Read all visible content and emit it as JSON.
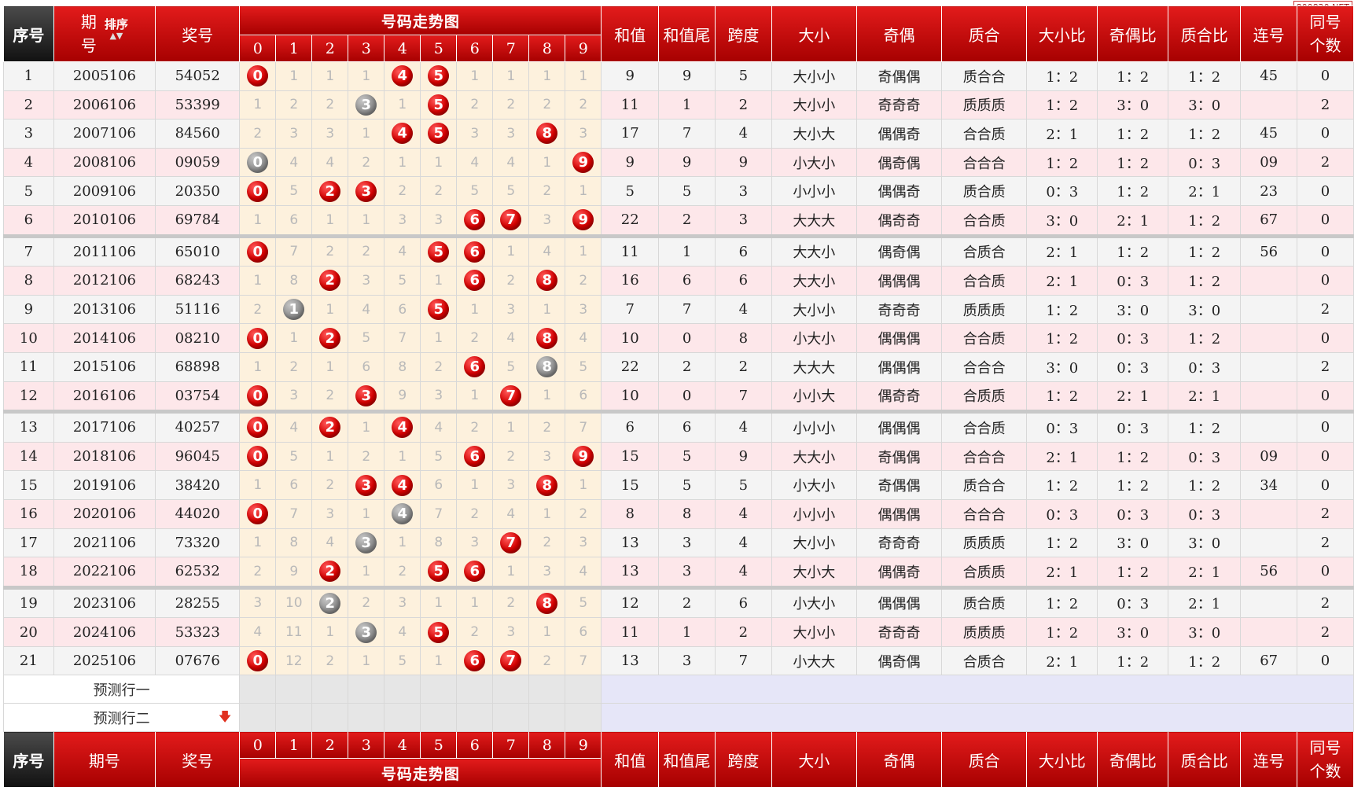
{
  "watermark": "800820.NET",
  "header": {
    "seq": "序号",
    "period_line1": "期",
    "period_line2": "号",
    "sort_label": "排序",
    "prize": "奖号",
    "trend_title": "号码走势图",
    "digits": [
      "0",
      "1",
      "2",
      "3",
      "4",
      "5",
      "6",
      "7",
      "8",
      "9"
    ],
    "sum": "和值",
    "sum_tail": "和值尾",
    "span": "跨度",
    "size": "大小",
    "odd_even": "奇偶",
    "prime": "质合",
    "size_ratio": "大小比",
    "oe_ratio": "奇偶比",
    "prime_ratio": "质合比",
    "consec": "连号",
    "same_line1": "同号",
    "same_line2": "个数"
  },
  "footer": {
    "seq": "序号",
    "period": "期号",
    "prize": "奖号",
    "trend_title": "号码走势图",
    "digits": [
      "0",
      "1",
      "2",
      "3",
      "4",
      "5",
      "6",
      "7",
      "8",
      "9"
    ],
    "sum": "和值",
    "sum_tail": "和值尾",
    "span": "跨度",
    "size": "大小",
    "odd_even": "奇偶",
    "prime": "质合",
    "size_ratio": "大小比",
    "oe_ratio": "奇偶比",
    "prime_ratio": "质合比",
    "consec": "连号",
    "same_line1": "同号",
    "same_line2": "个数"
  },
  "predict": {
    "row1": "预测行一",
    "row2": "预测行二"
  },
  "rows": [
    {
      "seq": "1",
      "period": "2005106",
      "prize": "54052",
      "cells": [
        {
          "t": "0",
          "b": "red"
        },
        {
          "t": "1"
        },
        {
          "t": "1"
        },
        {
          "t": "1"
        },
        {
          "t": "4",
          "b": "red"
        },
        {
          "t": "5",
          "b": "red"
        },
        {
          "t": "1"
        },
        {
          "t": "1"
        },
        {
          "t": "1"
        },
        {
          "t": "1"
        }
      ],
      "sum": "9",
      "tail": "9",
      "span": "5",
      "size": "大小小",
      "oe": "奇偶偶",
      "prime": "质合合",
      "sr": "1：2",
      "oer": "1：2",
      "pr": "1：2",
      "consec": "45",
      "same": "0"
    },
    {
      "seq": "2",
      "period": "2006106",
      "prize": "53399",
      "cells": [
        {
          "t": "1"
        },
        {
          "t": "2"
        },
        {
          "t": "2"
        },
        {
          "t": "3",
          "b": "grey"
        },
        {
          "t": "1"
        },
        {
          "t": "5",
          "b": "red"
        },
        {
          "t": "2"
        },
        {
          "t": "2"
        },
        {
          "t": "2"
        },
        {
          "t": "2"
        }
      ],
      "sum": "11",
      "tail": "1",
      "span": "2",
      "size": "大小小",
      "oe": "奇奇奇",
      "prime": "质质质",
      "sr": "1：2",
      "oer": "3：0",
      "pr": "3：0",
      "consec": "",
      "same": "2"
    },
    {
      "seq": "3",
      "period": "2007106",
      "prize": "84560",
      "cells": [
        {
          "t": "2"
        },
        {
          "t": "3"
        },
        {
          "t": "3"
        },
        {
          "t": "1"
        },
        {
          "t": "4",
          "b": "red"
        },
        {
          "t": "5",
          "b": "red"
        },
        {
          "t": "3"
        },
        {
          "t": "3"
        },
        {
          "t": "8",
          "b": "red"
        },
        {
          "t": "3"
        }
      ],
      "sum": "17",
      "tail": "7",
      "span": "4",
      "size": "大小大",
      "oe": "偶偶奇",
      "prime": "合合质",
      "sr": "2：1",
      "oer": "1：2",
      "pr": "1：2",
      "consec": "45",
      "same": "0"
    },
    {
      "seq": "4",
      "period": "2008106",
      "prize": "09059",
      "cells": [
        {
          "t": "0",
          "b": "grey"
        },
        {
          "t": "4"
        },
        {
          "t": "4"
        },
        {
          "t": "2"
        },
        {
          "t": "1"
        },
        {
          "t": "1"
        },
        {
          "t": "4"
        },
        {
          "t": "4"
        },
        {
          "t": "1"
        },
        {
          "t": "9",
          "b": "red"
        }
      ],
      "sum": "9",
      "tail": "9",
      "span": "9",
      "size": "小大小",
      "oe": "偶奇偶",
      "prime": "合合合",
      "sr": "1：2",
      "oer": "1：2",
      "pr": "0：3",
      "consec": "09",
      "same": "2"
    },
    {
      "seq": "5",
      "period": "2009106",
      "prize": "20350",
      "cells": [
        {
          "t": "0",
          "b": "red"
        },
        {
          "t": "5"
        },
        {
          "t": "2",
          "b": "red"
        },
        {
          "t": "3",
          "b": "red"
        },
        {
          "t": "2"
        },
        {
          "t": "2"
        },
        {
          "t": "5"
        },
        {
          "t": "5"
        },
        {
          "t": "2"
        },
        {
          "t": "1"
        }
      ],
      "sum": "5",
      "tail": "5",
      "span": "3",
      "size": "小小小",
      "oe": "偶偶奇",
      "prime": "质合质",
      "sr": "0：3",
      "oer": "1：2",
      "pr": "2：1",
      "consec": "23",
      "same": "0"
    },
    {
      "seq": "6",
      "period": "2010106",
      "prize": "69784",
      "cells": [
        {
          "t": "1"
        },
        {
          "t": "6"
        },
        {
          "t": "1"
        },
        {
          "t": "1"
        },
        {
          "t": "3"
        },
        {
          "t": "3"
        },
        {
          "t": "6",
          "b": "red"
        },
        {
          "t": "7",
          "b": "red"
        },
        {
          "t": "3"
        },
        {
          "t": "9",
          "b": "red"
        }
      ],
      "sum": "22",
      "tail": "2",
      "span": "3",
      "size": "大大大",
      "oe": "偶奇奇",
      "prime": "合合质",
      "sr": "3：0",
      "oer": "2：1",
      "pr": "1：2",
      "consec": "67",
      "same": "0"
    },
    {
      "seq": "7",
      "period": "2011106",
      "prize": "65010",
      "cells": [
        {
          "t": "0",
          "b": "red"
        },
        {
          "t": "7"
        },
        {
          "t": "2"
        },
        {
          "t": "2"
        },
        {
          "t": "4"
        },
        {
          "t": "5",
          "b": "red"
        },
        {
          "t": "6",
          "b": "red"
        },
        {
          "t": "1"
        },
        {
          "t": "4"
        },
        {
          "t": "1"
        }
      ],
      "sum": "11",
      "tail": "1",
      "span": "6",
      "size": "大大小",
      "oe": "偶奇偶",
      "prime": "合质合",
      "sr": "2：1",
      "oer": "1：2",
      "pr": "1：2",
      "consec": "56",
      "same": "0"
    },
    {
      "seq": "8",
      "period": "2012106",
      "prize": "68243",
      "cells": [
        {
          "t": "1"
        },
        {
          "t": "8"
        },
        {
          "t": "2",
          "b": "red"
        },
        {
          "t": "3"
        },
        {
          "t": "5"
        },
        {
          "t": "1"
        },
        {
          "t": "6",
          "b": "red"
        },
        {
          "t": "2"
        },
        {
          "t": "8",
          "b": "red"
        },
        {
          "t": "2"
        }
      ],
      "sum": "16",
      "tail": "6",
      "span": "6",
      "size": "大大小",
      "oe": "偶偶偶",
      "prime": "合合质",
      "sr": "2：1",
      "oer": "0：3",
      "pr": "1：2",
      "consec": "",
      "same": "0"
    },
    {
      "seq": "9",
      "period": "2013106",
      "prize": "51116",
      "cells": [
        {
          "t": "2"
        },
        {
          "t": "1",
          "b": "grey"
        },
        {
          "t": "1"
        },
        {
          "t": "4"
        },
        {
          "t": "6"
        },
        {
          "t": "5",
          "b": "red"
        },
        {
          "t": "1"
        },
        {
          "t": "3"
        },
        {
          "t": "1"
        },
        {
          "t": "3"
        }
      ],
      "sum": "7",
      "tail": "7",
      "span": "4",
      "size": "大小小",
      "oe": "奇奇奇",
      "prime": "质质质",
      "sr": "1：2",
      "oer": "3：0",
      "pr": "3：0",
      "consec": "",
      "same": "2"
    },
    {
      "seq": "10",
      "period": "2014106",
      "prize": "08210",
      "cells": [
        {
          "t": "0",
          "b": "red"
        },
        {
          "t": "1"
        },
        {
          "t": "2",
          "b": "red"
        },
        {
          "t": "5"
        },
        {
          "t": "7"
        },
        {
          "t": "1"
        },
        {
          "t": "2"
        },
        {
          "t": "4"
        },
        {
          "t": "8",
          "b": "red"
        },
        {
          "t": "4"
        }
      ],
      "sum": "10",
      "tail": "0",
      "span": "8",
      "size": "小大小",
      "oe": "偶偶偶",
      "prime": "合合质",
      "sr": "1：2",
      "oer": "0：3",
      "pr": "1：2",
      "consec": "",
      "same": "0"
    },
    {
      "seq": "11",
      "period": "2015106",
      "prize": "68898",
      "cells": [
        {
          "t": "1"
        },
        {
          "t": "2"
        },
        {
          "t": "1"
        },
        {
          "t": "6"
        },
        {
          "t": "8"
        },
        {
          "t": "2"
        },
        {
          "t": "6",
          "b": "red"
        },
        {
          "t": "5"
        },
        {
          "t": "8",
          "b": "grey"
        },
        {
          "t": "5"
        }
      ],
      "sum": "22",
      "tail": "2",
      "span": "2",
      "size": "大大大",
      "oe": "偶偶偶",
      "prime": "合合合",
      "sr": "3：0",
      "oer": "0：3",
      "pr": "0：3",
      "consec": "",
      "same": "2"
    },
    {
      "seq": "12",
      "period": "2016106",
      "prize": "03754",
      "cells": [
        {
          "t": "0",
          "b": "red"
        },
        {
          "t": "3"
        },
        {
          "t": "2"
        },
        {
          "t": "3",
          "b": "red"
        },
        {
          "t": "9"
        },
        {
          "t": "3"
        },
        {
          "t": "1"
        },
        {
          "t": "7",
          "b": "red"
        },
        {
          "t": "1"
        },
        {
          "t": "6"
        }
      ],
      "sum": "10",
      "tail": "0",
      "span": "7",
      "size": "小小大",
      "oe": "偶奇奇",
      "prime": "合质质",
      "sr": "1：2",
      "oer": "2：1",
      "pr": "2：1",
      "consec": "",
      "same": "0"
    },
    {
      "seq": "13",
      "period": "2017106",
      "prize": "40257",
      "cells": [
        {
          "t": "0",
          "b": "red"
        },
        {
          "t": "4"
        },
        {
          "t": "2",
          "b": "red"
        },
        {
          "t": "1"
        },
        {
          "t": "4",
          "b": "red"
        },
        {
          "t": "4"
        },
        {
          "t": "2"
        },
        {
          "t": "1"
        },
        {
          "t": "2"
        },
        {
          "t": "7"
        }
      ],
      "sum": "6",
      "tail": "6",
      "span": "4",
      "size": "小小小",
      "oe": "偶偶偶",
      "prime": "合合质",
      "sr": "0：3",
      "oer": "0：3",
      "pr": "1：2",
      "consec": "",
      "same": "0"
    },
    {
      "seq": "14",
      "period": "2018106",
      "prize": "96045",
      "cells": [
        {
          "t": "0",
          "b": "red"
        },
        {
          "t": "5"
        },
        {
          "t": "1"
        },
        {
          "t": "2"
        },
        {
          "t": "1"
        },
        {
          "t": "5"
        },
        {
          "t": "6",
          "b": "red"
        },
        {
          "t": "2"
        },
        {
          "t": "3"
        },
        {
          "t": "9",
          "b": "red"
        }
      ],
      "sum": "15",
      "tail": "5",
      "span": "9",
      "size": "大大小",
      "oe": "奇偶偶",
      "prime": "合合合",
      "sr": "2：1",
      "oer": "1：2",
      "pr": "0：3",
      "consec": "09",
      "same": "0"
    },
    {
      "seq": "15",
      "period": "2019106",
      "prize": "38420",
      "cells": [
        {
          "t": "1"
        },
        {
          "t": "6"
        },
        {
          "t": "2"
        },
        {
          "t": "3",
          "b": "red"
        },
        {
          "t": "4",
          "b": "red"
        },
        {
          "t": "6"
        },
        {
          "t": "1"
        },
        {
          "t": "3"
        },
        {
          "t": "8",
          "b": "red"
        },
        {
          "t": "1"
        }
      ],
      "sum": "15",
      "tail": "5",
      "span": "5",
      "size": "小大小",
      "oe": "奇偶偶",
      "prime": "质合合",
      "sr": "1：2",
      "oer": "1：2",
      "pr": "1：2",
      "consec": "34",
      "same": "0"
    },
    {
      "seq": "16",
      "period": "2020106",
      "prize": "44020",
      "cells": [
        {
          "t": "0",
          "b": "red"
        },
        {
          "t": "7"
        },
        {
          "t": "3"
        },
        {
          "t": "1"
        },
        {
          "t": "4",
          "b": "grey"
        },
        {
          "t": "7"
        },
        {
          "t": "2"
        },
        {
          "t": "4"
        },
        {
          "t": "1"
        },
        {
          "t": "2"
        }
      ],
      "sum": "8",
      "tail": "8",
      "span": "4",
      "size": "小小小",
      "oe": "偶偶偶",
      "prime": "合合合",
      "sr": "0：3",
      "oer": "0：3",
      "pr": "0：3",
      "consec": "",
      "same": "2"
    },
    {
      "seq": "17",
      "period": "2021106",
      "prize": "73320",
      "cells": [
        {
          "t": "1"
        },
        {
          "t": "8"
        },
        {
          "t": "4"
        },
        {
          "t": "3",
          "b": "grey"
        },
        {
          "t": "1"
        },
        {
          "t": "8"
        },
        {
          "t": "3"
        },
        {
          "t": "7",
          "b": "red"
        },
        {
          "t": "2"
        },
        {
          "t": "3"
        }
      ],
      "sum": "13",
      "tail": "3",
      "span": "4",
      "size": "大小小",
      "oe": "奇奇奇",
      "prime": "质质质",
      "sr": "1：2",
      "oer": "3：0",
      "pr": "3：0",
      "consec": "",
      "same": "2"
    },
    {
      "seq": "18",
      "period": "2022106",
      "prize": "62532",
      "cells": [
        {
          "t": "2"
        },
        {
          "t": "9"
        },
        {
          "t": "2",
          "b": "red"
        },
        {
          "t": "1"
        },
        {
          "t": "2"
        },
        {
          "t": "5",
          "b": "red"
        },
        {
          "t": "6",
          "b": "red"
        },
        {
          "t": "1"
        },
        {
          "t": "3"
        },
        {
          "t": "4"
        }
      ],
      "sum": "13",
      "tail": "3",
      "span": "4",
      "size": "大小大",
      "oe": "偶偶奇",
      "prime": "合质质",
      "sr": "2：1",
      "oer": "1：2",
      "pr": "2：1",
      "consec": "56",
      "same": "0"
    },
    {
      "seq": "19",
      "period": "2023106",
      "prize": "28255",
      "cells": [
        {
          "t": "3"
        },
        {
          "t": "10"
        },
        {
          "t": "2",
          "b": "grey"
        },
        {
          "t": "2"
        },
        {
          "t": "3"
        },
        {
          "t": "1"
        },
        {
          "t": "1"
        },
        {
          "t": "2"
        },
        {
          "t": "8",
          "b": "red"
        },
        {
          "t": "5"
        }
      ],
      "sum": "12",
      "tail": "2",
      "span": "6",
      "size": "小大小",
      "oe": "偶偶偶",
      "prime": "质合质",
      "sr": "1：2",
      "oer": "0：3",
      "pr": "2：1",
      "consec": "",
      "same": "2"
    },
    {
      "seq": "20",
      "period": "2024106",
      "prize": "53323",
      "cells": [
        {
          "t": "4"
        },
        {
          "t": "11"
        },
        {
          "t": "1"
        },
        {
          "t": "3",
          "b": "grey"
        },
        {
          "t": "4"
        },
        {
          "t": "5",
          "b": "red"
        },
        {
          "t": "2"
        },
        {
          "t": "3"
        },
        {
          "t": "1"
        },
        {
          "t": "6"
        }
      ],
      "sum": "11",
      "tail": "1",
      "span": "2",
      "size": "大小小",
      "oe": "奇奇奇",
      "prime": "质质质",
      "sr": "1：2",
      "oer": "3：0",
      "pr": "3：0",
      "consec": "",
      "same": "2"
    },
    {
      "seq": "21",
      "period": "2025106",
      "prize": "07676",
      "cells": [
        {
          "t": "0",
          "b": "red"
        },
        {
          "t": "12"
        },
        {
          "t": "2"
        },
        {
          "t": "1"
        },
        {
          "t": "5"
        },
        {
          "t": "1"
        },
        {
          "t": "6",
          "b": "red"
        },
        {
          "t": "7",
          "b": "red"
        },
        {
          "t": "2"
        },
        {
          "t": "7"
        }
      ],
      "sum": "13",
      "tail": "3",
      "span": "7",
      "size": "小大大",
      "oe": "偶奇偶",
      "prime": "合质合",
      "sr": "2：1",
      "oer": "1：2",
      "pr": "1：2",
      "consec": "67",
      "same": "0"
    }
  ]
}
